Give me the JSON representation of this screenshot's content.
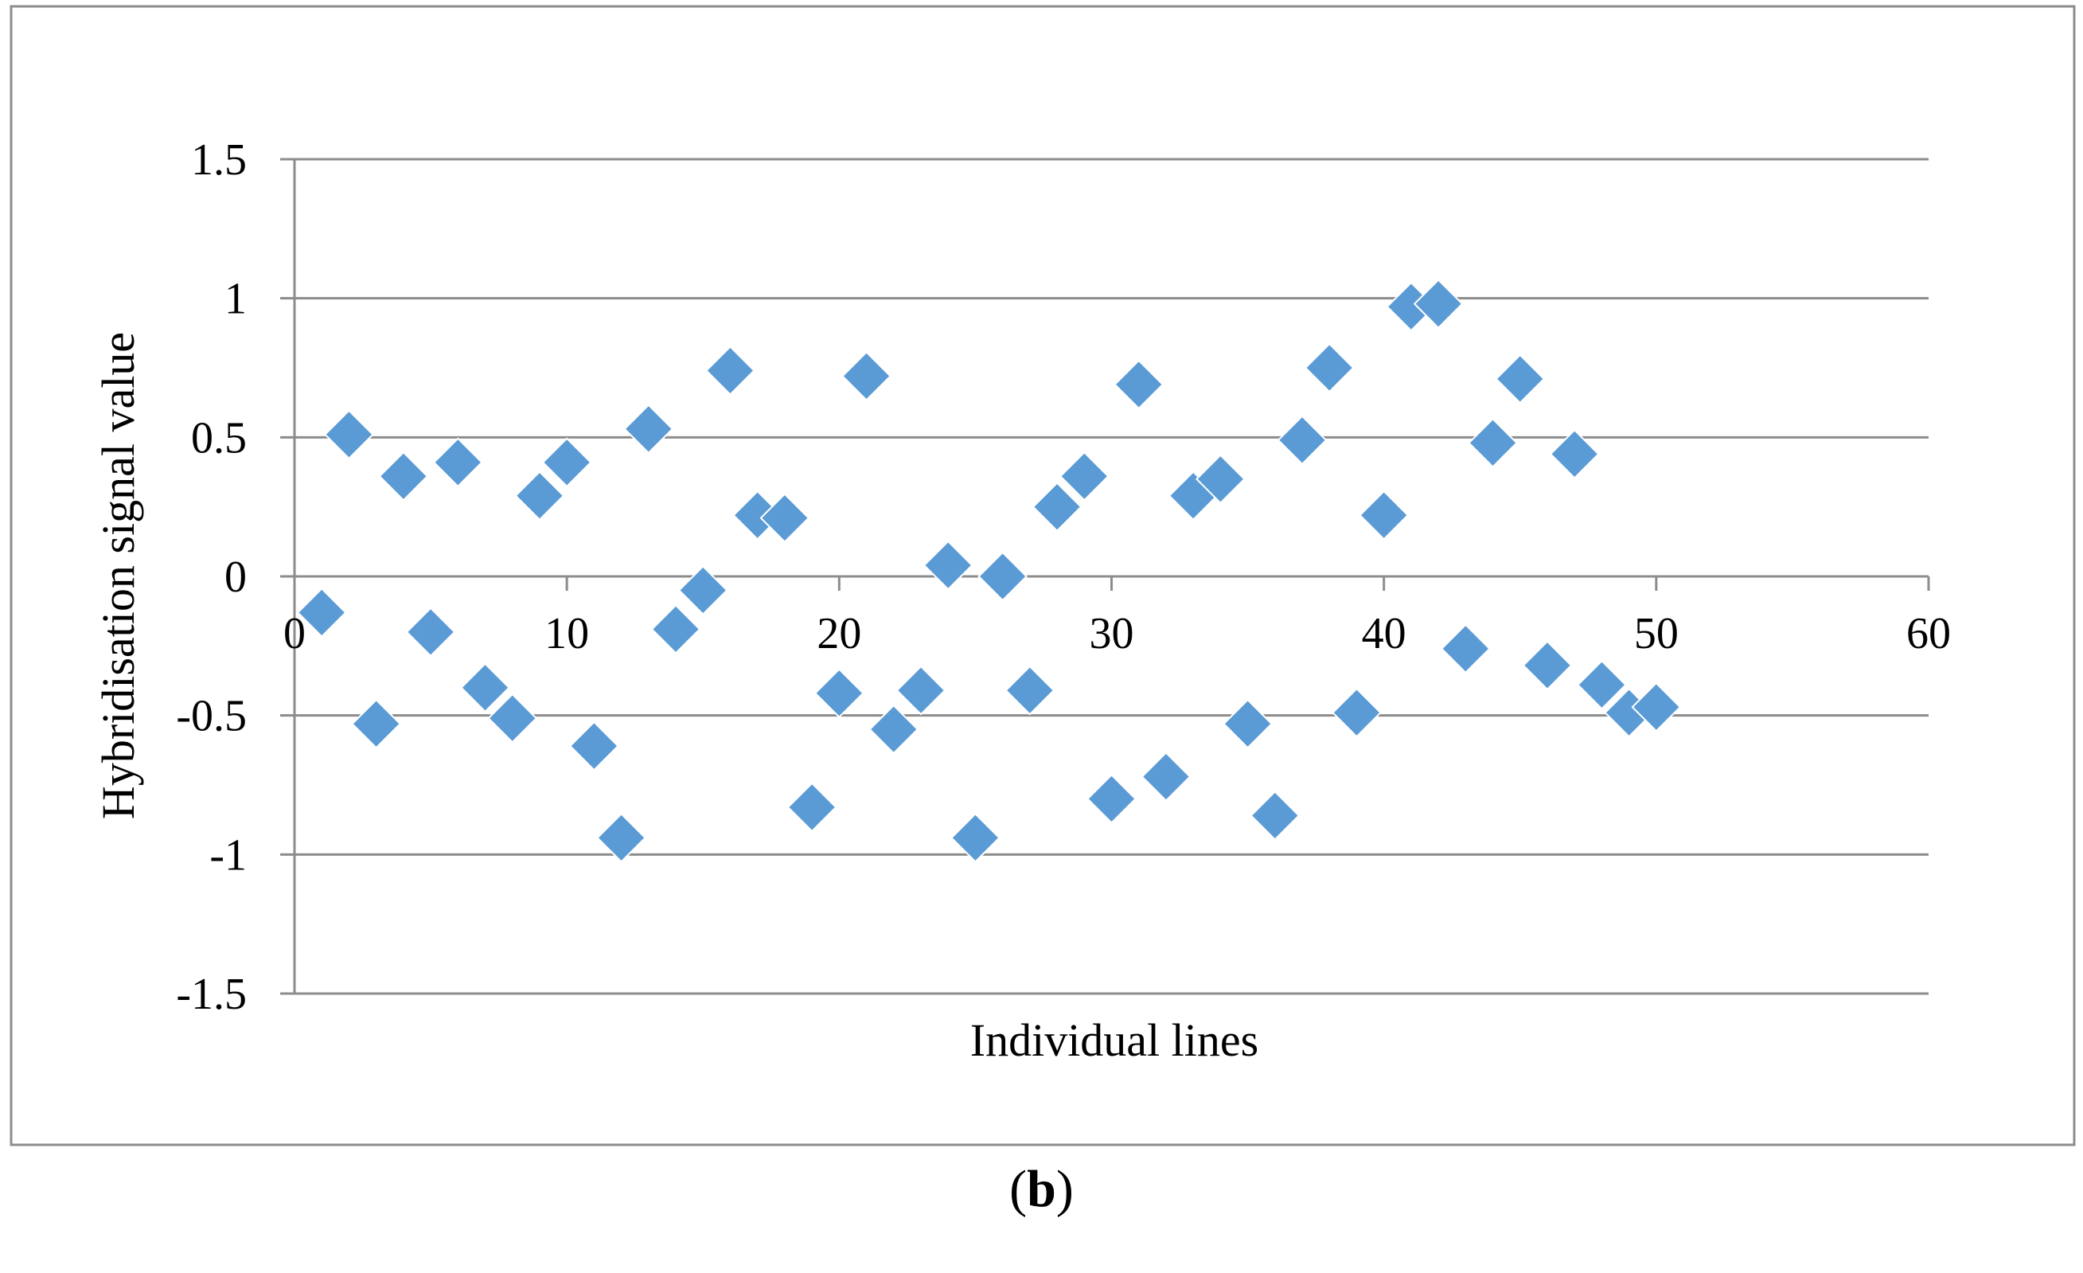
{
  "figure": {
    "caption_open": "(",
    "caption_letter": "b",
    "caption_close": ")"
  },
  "chart_data": {
    "type": "scatter",
    "title": "",
    "xlabel": "Individual lines",
    "ylabel": "Hybridisation signal value",
    "xlim": [
      0,
      60
    ],
    "ylim": [
      -1.5,
      1.5
    ],
    "x_ticks": [
      0,
      10,
      20,
      30,
      40,
      50,
      60
    ],
    "y_ticks": [
      1.5,
      1,
      0.5,
      0,
      -0.5,
      -1,
      -1.5
    ],
    "x_tick_labels": [
      "0",
      "10",
      "20",
      "30",
      "40",
      "50",
      "60"
    ],
    "y_tick_labels": [
      "1.5",
      "1",
      "0.5",
      "0",
      "-0.5",
      "-1",
      "-1.5"
    ],
    "grid": "horizontal",
    "legend": "none",
    "marker": "diamond",
    "marker_color": "#5B9BD5",
    "gridline_color": "#8C8C8C",
    "frame_color": "#8C8C8C",
    "series": [
      {
        "x": [
          1,
          2,
          3,
          4,
          5,
          6,
          7,
          8,
          9,
          10,
          11,
          12,
          13,
          14,
          15,
          16,
          17,
          18,
          19,
          20,
          21,
          22,
          23,
          24,
          25,
          26,
          27,
          28,
          29,
          30,
          31,
          32,
          33,
          34,
          35,
          36,
          37,
          38,
          39,
          40,
          41,
          42,
          43,
          44,
          45,
          46,
          47,
          48,
          49,
          50
        ],
        "y": [
          -0.13,
          0.51,
          -0.53,
          0.36,
          -0.2,
          0.41,
          -0.4,
          -0.51,
          0.29,
          0.41,
          -0.61,
          -0.94,
          0.53,
          -0.19,
          -0.05,
          0.74,
          0.22,
          0.21,
          -0.83,
          -0.42,
          0.72,
          -0.55,
          -0.41,
          0.04,
          -0.94,
          0.0,
          -0.41,
          0.25,
          0.36,
          -0.8,
          0.69,
          -0.72,
          0.29,
          0.35,
          -0.53,
          -0.86,
          0.49,
          0.75,
          -0.49,
          0.22,
          0.97,
          0.98,
          -0.26,
          0.48,
          0.71,
          -0.32,
          0.44,
          -0.39,
          -0.49,
          -0.47
        ]
      }
    ]
  }
}
